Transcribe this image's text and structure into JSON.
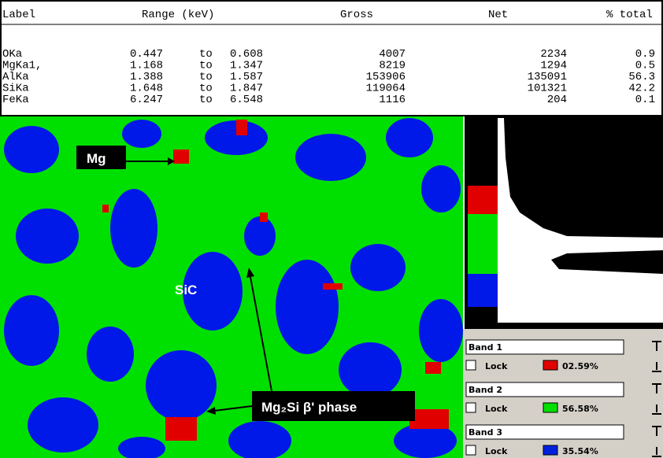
{
  "table": {
    "header": [
      "Label",
      "Range (keV)",
      "Gross",
      "Net",
      "% total"
    ],
    "rows": [
      [
        "OKa",
        0.447,
        "to",
        0.608,
        4007,
        2234,
        0.9
      ],
      [
        "MgKa1,",
        1.168,
        "to",
        1.347,
        8219,
        1294,
        0.5
      ],
      [
        "AlKa",
        1.388,
        "to",
        1.587,
        153906,
        135091,
        56.3
      ],
      [
        "SiKa",
        1.648,
        "to",
        1.847,
        119064,
        101321,
        42.2
      ],
      [
        "FeKa",
        6.247,
        "to",
        6.548,
        1116,
        204,
        0.1
      ]
    ]
  },
  "annotations": {
    "mg": "Mg",
    "sic": "SiC",
    "phase": "Mg₂Si β' phase"
  },
  "bands": [
    {
      "name": "Band 1",
      "lock": "Lock",
      "color": "#e00000",
      "percent": "02.59%"
    },
    {
      "name": "Band 2",
      "lock": "Lock",
      "color": "#00e000",
      "percent": "56.58%"
    },
    {
      "name": "Band 3",
      "lock": "Lock",
      "color": "#0020e0",
      "percent": "35.54%"
    }
  ]
}
